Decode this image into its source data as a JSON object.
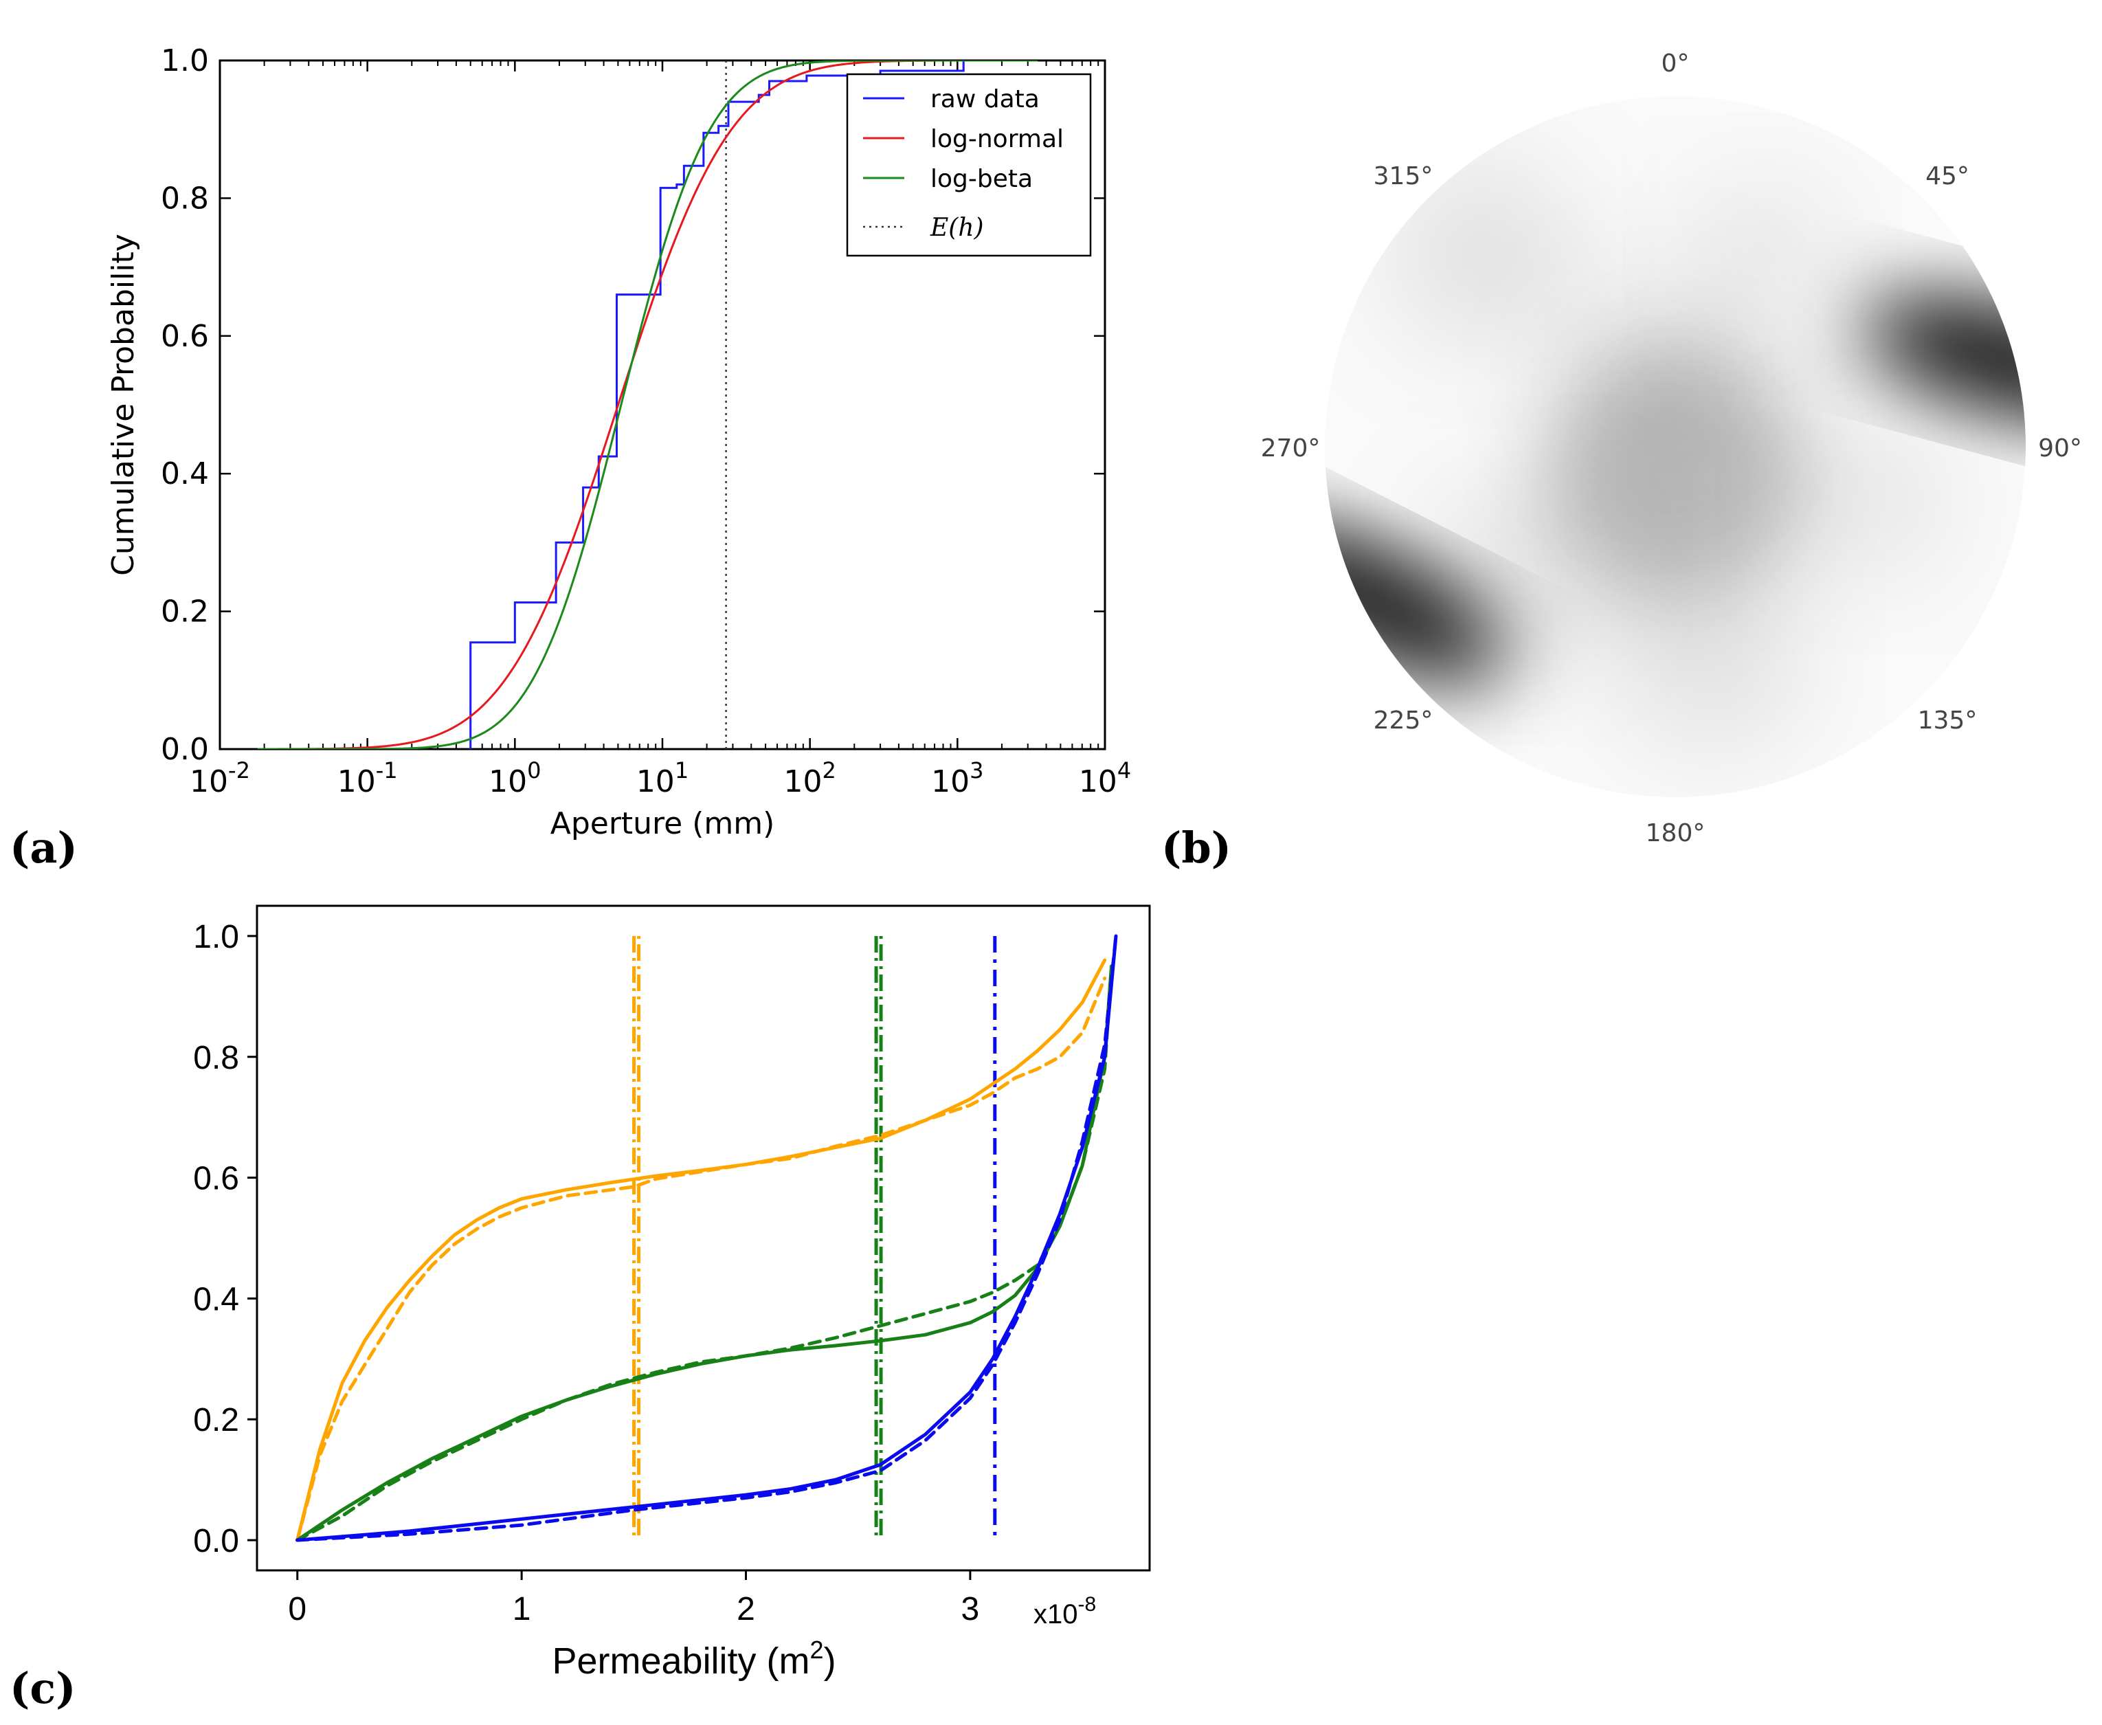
{
  "panels": {
    "a": {
      "tag": "(a)"
    },
    "b": {
      "tag": "(b)"
    },
    "c": {
      "tag": "(c)"
    }
  },
  "colors": {
    "blue": "#1a1aff",
    "red": "#e8191e",
    "green": "#1a8a1a",
    "orange": "#ffa500",
    "c_blue": "#0a0aee",
    "c_green": "#178017"
  },
  "chart_data": [
    {
      "id": "a",
      "type": "line",
      "title": "",
      "xlabel": "Aperture (mm)",
      "ylabel": "Cumulative Probability",
      "xscale": "log",
      "xlim": [
        0.01,
        10000
      ],
      "ylim": [
        0.0,
        1.0
      ],
      "x_tick_labels": [
        {
          "base": "10",
          "exp": "-2",
          "value": 0.01
        },
        {
          "base": "10",
          "exp": "-1",
          "value": 0.1
        },
        {
          "base": "10",
          "exp": "0",
          "value": 1
        },
        {
          "base": "10",
          "exp": "1",
          "value": 10
        },
        {
          "base": "10",
          "exp": "2",
          "value": 100
        },
        {
          "base": "10",
          "exp": "3",
          "value": 1000
        },
        {
          "base": "10",
          "exp": "4",
          "value": 10000
        }
      ],
      "y_ticks": [
        0.0,
        0.2,
        0.4,
        0.6,
        0.8,
        1.0
      ],
      "y_tick_labels": [
        "0.0",
        "0.2",
        "0.4",
        "0.6",
        "0.8",
        "1.0"
      ],
      "legend_position": "top-right",
      "legend": [
        "raw data",
        "log-normal",
        "log-beta",
        "E(h)"
      ],
      "series": [
        {
          "name": "raw data",
          "kind": "step",
          "color": "blue",
          "points": [
            [
              0.5,
              0.0
            ],
            [
              0.5,
              0.155
            ],
            [
              1.0,
              0.155
            ],
            [
              1.0,
              0.213
            ],
            [
              1.9,
              0.213
            ],
            [
              1.9,
              0.3
            ],
            [
              2.9,
              0.3
            ],
            [
              2.9,
              0.38
            ],
            [
              3.7,
              0.38
            ],
            [
              3.7,
              0.425
            ],
            [
              4.9,
              0.425
            ],
            [
              4.9,
              0.66
            ],
            [
              9.7,
              0.66
            ],
            [
              9.7,
              0.815
            ],
            [
              12.5,
              0.815
            ],
            [
              12.5,
              0.82
            ],
            [
              14.0,
              0.82
            ],
            [
              14.0,
              0.847
            ],
            [
              19.0,
              0.847
            ],
            [
              19.0,
              0.895
            ],
            [
              24.0,
              0.895
            ],
            [
              24.0,
              0.905
            ],
            [
              28.0,
              0.905
            ],
            [
              28.0,
              0.94
            ],
            [
              45.0,
              0.94
            ],
            [
              45.0,
              0.95
            ],
            [
              53.0,
              0.95
            ],
            [
              53.0,
              0.97
            ],
            [
              95.0,
              0.97
            ],
            [
              95.0,
              0.978
            ],
            [
              300.0,
              0.978
            ],
            [
              300.0,
              0.985
            ],
            [
              1100.0,
              0.985
            ],
            [
              1100.0,
              1.0
            ],
            [
              3000.0,
              1.0
            ]
          ]
        },
        {
          "name": "log-normal",
          "kind": "lognormal_cdf",
          "color": "red",
          "mu_log10": 0.7,
          "sigma_log10": 0.6,
          "x_range": [
            0.018,
            3500
          ]
        },
        {
          "name": "log-beta",
          "kind": "lognormal_cdf",
          "color": "green",
          "mu_log10": 0.72,
          "sigma_log10": 0.47,
          "x_range": [
            0.018,
            3500
          ]
        }
      ],
      "vlines": [
        {
          "name": "E(h)",
          "x": 27.0,
          "style": "dotted",
          "color": "#333333"
        }
      ]
    },
    {
      "id": "b",
      "type": "polar_heatmap",
      "angle_labels": [
        "0°",
        "45°",
        "90°",
        "135°",
        "180°",
        "225°",
        "270°",
        "315°"
      ],
      "colormap": "gray_r",
      "dark_regions": [
        {
          "angle_deg": 75,
          "radius": 0.97,
          "weight": 1.0
        },
        {
          "angle_deg": 243,
          "radius": 0.97,
          "weight": 1.0
        },
        {
          "angle_deg": 0,
          "radius": 0.0,
          "weight": 0.45
        }
      ]
    },
    {
      "id": "c",
      "type": "line",
      "title": "",
      "xlabel": "Permeability (m",
      "xlabel_sup": "2",
      "xlabel_close": ")",
      "ylabel": "Cumulative Probability",
      "x_scale_note": {
        "base": "x10",
        "exp": "-8"
      },
      "xlim": [
        -0.18,
        3.8
      ],
      "ylim": [
        -0.05,
        1.05
      ],
      "x_ticks": [
        0,
        1,
        2,
        3
      ],
      "x_tick_labels": [
        "0",
        "1",
        "2",
        "3"
      ],
      "y_ticks": [
        0.0,
        0.2,
        0.4,
        0.6,
        0.8,
        1.0
      ],
      "y_tick_labels": [
        "0.0",
        "0.2",
        "0.4",
        "0.6",
        "0.8",
        "1.0"
      ],
      "series": [
        {
          "name": "orange-solid",
          "color": "orange",
          "style": "solid",
          "points": [
            [
              0,
              0.0
            ],
            [
              0.1,
              0.15
            ],
            [
              0.2,
              0.26
            ],
            [
              0.3,
              0.33
            ],
            [
              0.4,
              0.385
            ],
            [
              0.5,
              0.43
            ],
            [
              0.6,
              0.47
            ],
            [
              0.7,
              0.505
            ],
            [
              0.8,
              0.53
            ],
            [
              0.9,
              0.55
            ],
            [
              1.0,
              0.565
            ],
            [
              1.2,
              0.58
            ],
            [
              1.4,
              0.592
            ],
            [
              1.6,
              0.603
            ],
            [
              1.8,
              0.612
            ],
            [
              2.0,
              0.622
            ],
            [
              2.2,
              0.635
            ],
            [
              2.4,
              0.65
            ],
            [
              2.6,
              0.665
            ],
            [
              2.8,
              0.695
            ],
            [
              3.0,
              0.73
            ],
            [
              3.1,
              0.755
            ],
            [
              3.2,
              0.78
            ],
            [
              3.3,
              0.81
            ],
            [
              3.4,
              0.845
            ],
            [
              3.5,
              0.89
            ],
            [
              3.6,
              0.96
            ]
          ]
        },
        {
          "name": "orange-dashed",
          "color": "orange",
          "style": "dashed",
          "points": [
            [
              0,
              0.0
            ],
            [
              0.1,
              0.14
            ],
            [
              0.2,
              0.23
            ],
            [
              0.3,
              0.29
            ],
            [
              0.4,
              0.35
            ],
            [
              0.5,
              0.41
            ],
            [
              0.6,
              0.455
            ],
            [
              0.7,
              0.49
            ],
            [
              0.8,
              0.515
            ],
            [
              0.9,
              0.535
            ],
            [
              1.0,
              0.55
            ],
            [
              1.2,
              0.57
            ],
            [
              1.4,
              0.58
            ],
            [
              1.5,
              0.585
            ],
            [
              1.6,
              0.598
            ],
            [
              1.8,
              0.61
            ],
            [
              2.0,
              0.622
            ],
            [
              2.2,
              0.632
            ],
            [
              2.4,
              0.652
            ],
            [
              2.6,
              0.67
            ],
            [
              2.8,
              0.695
            ],
            [
              3.0,
              0.72
            ],
            [
              3.1,
              0.74
            ],
            [
              3.2,
              0.765
            ],
            [
              3.3,
              0.78
            ],
            [
              3.4,
              0.8
            ],
            [
              3.5,
              0.84
            ],
            [
              3.6,
              0.93
            ]
          ]
        },
        {
          "name": "green-solid",
          "color": "c_green",
          "style": "solid",
          "points": [
            [
              0,
              0.0
            ],
            [
              0.2,
              0.05
            ],
            [
              0.4,
              0.095
            ],
            [
              0.6,
              0.135
            ],
            [
              0.8,
              0.17
            ],
            [
              1.0,
              0.205
            ],
            [
              1.2,
              0.232
            ],
            [
              1.4,
              0.255
            ],
            [
              1.6,
              0.275
            ],
            [
              1.8,
              0.292
            ],
            [
              2.0,
              0.305
            ],
            [
              2.2,
              0.315
            ],
            [
              2.4,
              0.322
            ],
            [
              2.6,
              0.33
            ],
            [
              2.8,
              0.34
            ],
            [
              3.0,
              0.36
            ],
            [
              3.1,
              0.378
            ],
            [
              3.2,
              0.405
            ],
            [
              3.3,
              0.45
            ],
            [
              3.4,
              0.52
            ],
            [
              3.5,
              0.62
            ],
            [
              3.6,
              0.8
            ],
            [
              3.63,
              0.95
            ]
          ]
        },
        {
          "name": "green-dashed",
          "color": "c_green",
          "style": "dashed",
          "points": [
            [
              0,
              0.0
            ],
            [
              0.2,
              0.04
            ],
            [
              0.4,
              0.09
            ],
            [
              0.6,
              0.13
            ],
            [
              0.8,
              0.165
            ],
            [
              1.0,
              0.2
            ],
            [
              1.2,
              0.232
            ],
            [
              1.4,
              0.258
            ],
            [
              1.6,
              0.278
            ],
            [
              1.8,
              0.295
            ],
            [
              2.0,
              0.305
            ],
            [
              2.2,
              0.318
            ],
            [
              2.4,
              0.335
            ],
            [
              2.6,
              0.355
            ],
            [
              2.8,
              0.375
            ],
            [
              3.0,
              0.395
            ],
            [
              3.1,
              0.41
            ],
            [
              3.2,
              0.43
            ],
            [
              3.3,
              0.455
            ],
            [
              3.4,
              0.52
            ],
            [
              3.5,
              0.62
            ],
            [
              3.6,
              0.78
            ],
            [
              3.63,
              0.95
            ]
          ]
        },
        {
          "name": "blue-solid",
          "color": "c_blue",
          "style": "solid",
          "points": [
            [
              0,
              0.0
            ],
            [
              0.5,
              0.015
            ],
            [
              1.0,
              0.035
            ],
            [
              1.5,
              0.055
            ],
            [
              2.0,
              0.075
            ],
            [
              2.2,
              0.085
            ],
            [
              2.4,
              0.1
            ],
            [
              2.6,
              0.125
            ],
            [
              2.8,
              0.175
            ],
            [
              3.0,
              0.245
            ],
            [
              3.1,
              0.3
            ],
            [
              3.2,
              0.37
            ],
            [
              3.3,
              0.45
            ],
            [
              3.4,
              0.54
            ],
            [
              3.5,
              0.65
            ],
            [
              3.6,
              0.8
            ],
            [
              3.65,
              1.0
            ]
          ]
        },
        {
          "name": "blue-dashed",
          "color": "c_blue",
          "style": "dashed",
          "points": [
            [
              0,
              0.0
            ],
            [
              0.5,
              0.01
            ],
            [
              1.0,
              0.025
            ],
            [
              1.5,
              0.05
            ],
            [
              2.0,
              0.07
            ],
            [
              2.2,
              0.08
            ],
            [
              2.4,
              0.095
            ],
            [
              2.6,
              0.115
            ],
            [
              2.8,
              0.165
            ],
            [
              3.0,
              0.235
            ],
            [
              3.1,
              0.29
            ],
            [
              3.2,
              0.36
            ],
            [
              3.3,
              0.44
            ],
            [
              3.4,
              0.53
            ],
            [
              3.5,
              0.66
            ],
            [
              3.6,
              0.82
            ],
            [
              3.65,
              1.0
            ]
          ]
        }
      ],
      "vlines": [
        {
          "name": "orange-mean",
          "x": 1.51,
          "color": "orange",
          "style": "dashdot-double"
        },
        {
          "name": "green-mean",
          "x": 2.59,
          "color": "c_green",
          "style": "dashdot-double"
        },
        {
          "name": "blue-mean",
          "x": 3.11,
          "color": "c_blue",
          "style": "dashdot"
        }
      ]
    }
  ]
}
